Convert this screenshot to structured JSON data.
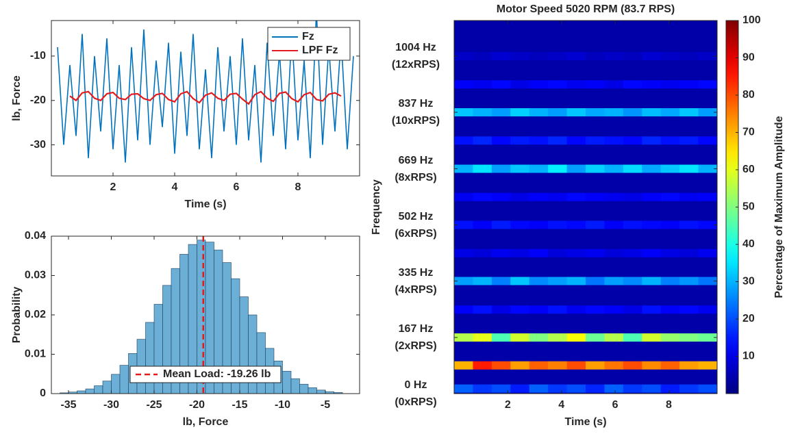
{
  "chart_data": [
    {
      "type": "line",
      "xlabel": "Time (s)",
      "ylabel": "lb, Force",
      "xlim": [
        0,
        10
      ],
      "ylim": [
        -37,
        -2
      ],
      "xticks": [
        2,
        4,
        6,
        8
      ],
      "yticks": [
        -30,
        -20,
        -10
      ],
      "legend": "upper right",
      "series": [
        {
          "name": "Fz",
          "color": "#0072bd",
          "x": [
            0.2,
            0.4,
            0.6,
            0.8,
            1.0,
            1.2,
            1.4,
            1.6,
            1.8,
            2.0,
            2.2,
            2.4,
            2.6,
            2.8,
            3.0,
            3.2,
            3.4,
            3.6,
            3.8,
            4.0,
            4.2,
            4.4,
            4.6,
            4.8,
            5.0,
            5.2,
            5.4,
            5.6,
            5.8,
            6.0,
            6.2,
            6.4,
            6.6,
            6.8,
            7.0,
            7.2,
            7.4,
            7.6,
            7.8,
            8.0,
            8.2,
            8.4,
            8.6,
            8.8,
            9.0,
            9.2,
            9.4,
            9.6,
            9.8
          ],
          "values": [
            -8,
            -30,
            -12,
            -28,
            -5,
            -33,
            -10,
            -27,
            -6,
            -31,
            -12,
            -34,
            -8,
            -29,
            -4,
            -30,
            -11,
            -26,
            -7,
            -32,
            -9,
            -28,
            -5,
            -31,
            -13,
            -33,
            -8,
            -27,
            -10,
            -30,
            -6,
            -29,
            -12,
            -34,
            -7,
            -28,
            -9,
            -31,
            -5,
            -29,
            -11,
            -33,
            0,
            -30,
            -8,
            -27,
            -6,
            -31,
            -10
          ]
        },
        {
          "name": "LPF Fz",
          "color": "#e41a1c",
          "x": [
            0.6,
            0.8,
            1.0,
            1.2,
            1.4,
            1.6,
            1.8,
            2.0,
            2.2,
            2.4,
            2.6,
            2.8,
            3.0,
            3.2,
            3.4,
            3.6,
            3.8,
            4.0,
            4.2,
            4.4,
            4.6,
            4.8,
            5.0,
            5.2,
            5.4,
            5.6,
            5.8,
            6.0,
            6.2,
            6.4,
            6.6,
            6.8,
            7.0,
            7.2,
            7.4,
            7.6,
            7.8,
            8.0,
            8.2,
            8.4,
            8.6,
            8.8,
            9.0,
            9.2,
            9.4
          ],
          "values": [
            -19,
            -20,
            -18.3,
            -18,
            -19.5,
            -20,
            -18.5,
            -18.2,
            -19.5,
            -19.8,
            -18.6,
            -18.5,
            -19.6,
            -20,
            -18.7,
            -18.4,
            -19.8,
            -20.3,
            -18.5,
            -18,
            -19.6,
            -20.5,
            -18.8,
            -18.3,
            -19.5,
            -20,
            -18.6,
            -18.4,
            -19.7,
            -20.8,
            -18.7,
            -18,
            -19.5,
            -20.2,
            -18.4,
            -18.1,
            -19.6,
            -20.3,
            -18.7,
            -18.2,
            -19.8,
            -20.1,
            -18.6,
            -18.3,
            -19
          ]
        }
      ]
    },
    {
      "type": "histogram",
      "xlabel": "lb, Force",
      "ylabel": "Probability",
      "xlim": [
        -37,
        -1
      ],
      "ylim": [
        0,
        0.04
      ],
      "xticks": [
        -35,
        -30,
        -25,
        -20,
        -15,
        -10,
        -5
      ],
      "yticks": [
        0,
        0.01,
        0.02,
        0.03,
        0.04
      ],
      "color": "#6baed6",
      "bins": [
        -36,
        -35,
        -34,
        -33,
        -32,
        -31,
        -30,
        -29,
        -28,
        -27,
        -26,
        -25,
        -24,
        -23,
        -22,
        -21,
        -20,
        -19,
        -18,
        -17,
        -16,
        -15,
        -14,
        -13,
        -12,
        -11,
        -10,
        -9,
        -8,
        -7,
        -6,
        -5,
        -4,
        -3
      ],
      "values": [
        0.0002,
        0.0004,
        0.0007,
        0.0012,
        0.002,
        0.0032,
        0.0049,
        0.0072,
        0.0102,
        0.0138,
        0.0181,
        0.0227,
        0.0275,
        0.0318,
        0.0354,
        0.0379,
        0.039,
        0.0385,
        0.0365,
        0.0333,
        0.0292,
        0.0246,
        0.02,
        0.0155,
        0.0115,
        0.0083,
        0.0057,
        0.0038,
        0.0024,
        0.0015,
        0.0009,
        0.0005,
        0.0003
      ],
      "mean_line": {
        "value": -19.26,
        "label": "Mean Load: -19.26 lb",
        "color": "#e41a1c"
      }
    },
    {
      "type": "heatmap",
      "title": "Motor Speed 5020 RPM (83.7 RPS)",
      "xlabel": "Time (s)",
      "ylabel": "Frequency",
      "xlim": [
        0,
        9.8
      ],
      "ylim": [
        0,
        1110
      ],
      "xticks": [
        2,
        4,
        6,
        8
      ],
      "yticks": [
        {
          "value": 0,
          "label": "0 Hz\n(0xRPS)"
        },
        {
          "value": 167,
          "label": "167 Hz\n(2xRPS)"
        },
        {
          "value": 335,
          "label": "335 Hz\n(4xRPS)"
        },
        {
          "value": 502,
          "label": "502 Hz\n(6xRPS)"
        },
        {
          "value": 669,
          "label": "669 Hz\n(8xRPS)"
        },
        {
          "value": 837,
          "label": "837 Hz\n(10xRPS)"
        },
        {
          "value": 1004,
          "label": "1004 Hz\n(12xRPS)"
        }
      ],
      "colormap": "jet",
      "colorbar": {
        "lim": [
          0,
          100
        ],
        "ticks": [
          10,
          20,
          30,
          40,
          50,
          60,
          70,
          80,
          90,
          100
        ],
        "label": "Percentage of Maximum Amplitude"
      },
      "x": [
        0.35,
        1.05,
        1.75,
        2.45,
        3.15,
        3.85,
        4.55,
        5.25,
        5.95,
        6.65,
        7.35,
        8.05,
        8.75,
        9.45
      ],
      "y": [
        15,
        84,
        167,
        250,
        335,
        418,
        502,
        585,
        669,
        753,
        837,
        920,
        1004
      ],
      "z": [
        [
          22,
          18,
          20,
          15,
          22,
          18,
          20,
          16,
          22,
          18,
          20,
          15,
          18,
          20
        ],
        [
          70,
          85,
          80,
          72,
          78,
          75,
          80,
          72,
          76,
          80,
          74,
          78,
          72,
          70
        ],
        [
          55,
          60,
          45,
          58,
          50,
          55,
          62,
          48,
          55,
          45,
          58,
          52,
          50,
          48
        ],
        [
          12,
          14,
          10,
          13,
          12,
          14,
          11,
          13,
          12,
          10,
          14,
          12,
          13,
          11
        ],
        [
          28,
          30,
          25,
          32,
          26,
          28,
          30,
          24,
          28,
          26,
          30,
          25,
          27,
          24
        ],
        [
          10,
          9,
          11,
          10,
          12,
          9,
          10,
          11,
          9,
          10,
          12,
          10,
          9,
          11
        ],
        [
          14,
          12,
          15,
          13,
          12,
          14,
          13,
          15,
          12,
          14,
          13,
          12,
          14,
          13
        ],
        [
          11,
          13,
          12,
          10,
          12,
          11,
          13,
          12,
          11,
          10,
          12,
          13,
          11,
          12
        ],
        [
          30,
          35,
          28,
          32,
          30,
          36,
          28,
          33,
          30,
          34,
          29,
          32,
          35,
          30
        ],
        [
          14,
          16,
          13,
          15,
          14,
          16,
          13,
          15,
          14,
          13,
          16,
          14,
          15,
          13
        ],
        [
          32,
          30,
          28,
          33,
          30,
          28,
          32,
          29,
          30,
          27,
          31,
          29,
          32,
          28
        ],
        [
          12,
          11,
          13,
          10,
          12,
          13,
          11,
          12,
          10,
          13,
          12,
          11,
          12,
          13
        ],
        [
          7,
          6,
          8,
          7,
          6,
          7,
          8,
          6,
          7,
          6,
          8,
          7,
          6,
          7
        ]
      ]
    }
  ]
}
